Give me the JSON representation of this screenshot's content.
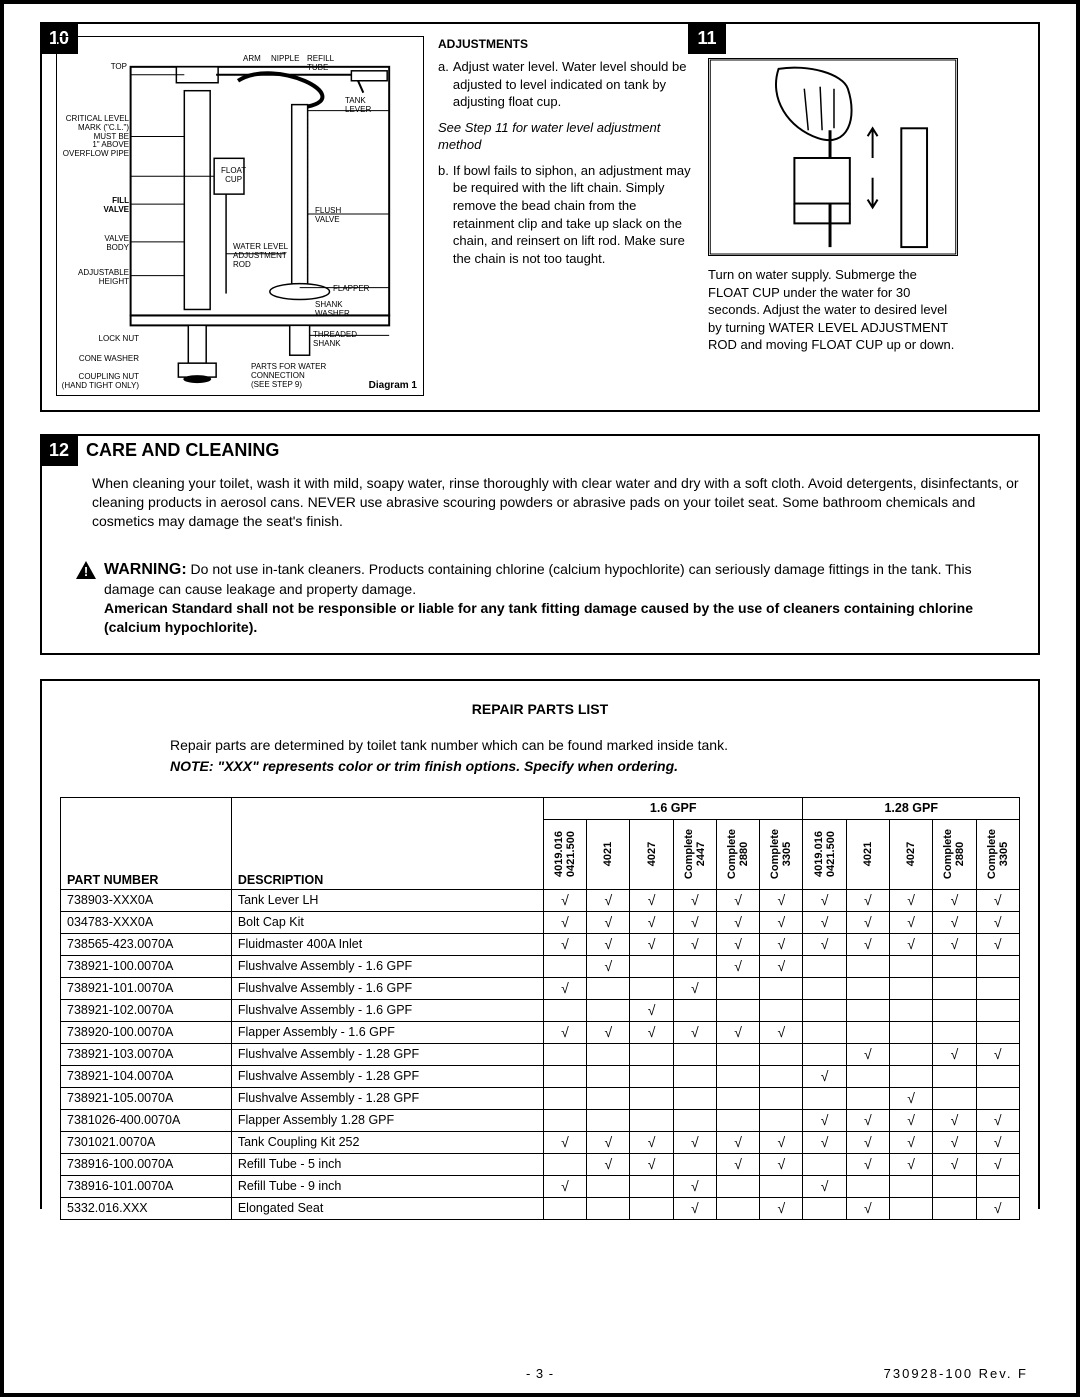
{
  "steps": {
    "s10": "10",
    "s11": "11",
    "s12": "12"
  },
  "diagram1": {
    "caption": "Diagram 1",
    "labels": {
      "top": "TOP",
      "arm": "ARM",
      "nipple": "NIPPLE",
      "refill_tube": "REFILL\nTUBE",
      "tank_lever": "TANK\nLEVER",
      "critical": "CRITICAL LEVEL\nMARK (\"C.L.\")\nMUST BE\n1\" ABOVE\nOVERFLOW PIPE",
      "float_cup": "FLOAT\nCUP",
      "fill_valve": "FILL\nVALVE",
      "flush_valve": "FLUSH\nVALVE",
      "valve_body": "VALVE\nBODY",
      "water_rod": "WATER LEVEL\nADJUSTMENT\nROD",
      "adj_height": "ADJUSTABLE\nHEIGHT",
      "flapper": "FLAPPER",
      "shank_washer": "SHANK\nWASHER",
      "lock_nut": "LOCK NUT",
      "threaded_shank": "THREADED\nSHANK",
      "cone_washer": "CONE WASHER",
      "coupling_nut": "COUPLING NUT\n(HAND TIGHT ONLY)",
      "parts_water": "PARTS FOR WATER\nCONNECTION\n(SEE STEP 9)"
    }
  },
  "adjustments": {
    "heading": "ADJUSTMENTS",
    "a": "Adjust water level. Water level should be adjusted to level indicated on tank by adjusting float cup.",
    "note": "See Step 11 for water level adjustment method",
    "b": "If bowl fails to siphon, an adjustment may be required with the lift chain. Simply remove the bead chain from the retainment clip and take up slack on the chain, and reinsert on lift rod. Make sure the chain is not too taught."
  },
  "step11_text": "Turn on water supply. Submerge the FLOAT CUP under the water for 30 seconds. Adjust the water to desired level by turning WATER LEVEL ADJUSTMENT ROD and moving FLOAT CUP up or down.",
  "care": {
    "title": "CARE AND CLEANING",
    "body": "When cleaning your toilet, wash it with mild, soapy water, rinse thoroughly with clear water and dry with a soft cloth. Avoid detergents, disinfectants, or cleaning products in aerosol cans. NEVER use abrasive scouring powders or abrasive pads on your toilet seat. Some bathroom chemicals and cosmetics may damage the seat's finish.",
    "warn_label": "WARNING:",
    "warn1": "Do not use in-tank cleaners. Products containing chlorine (calcium hypochlorite) can seriously damage fittings in the tank. This damage can cause leakage and property damage.",
    "warn2": "American Standard shall not be responsible or liable for any tank fitting damage caused by the use of cleaners containing chlorine (calcium hypochlorite)."
  },
  "parts": {
    "heading": "REPAIR PARTS LIST",
    "intro1": "Repair parts are determined by toilet tank number which can be found marked inside tank.",
    "intro2": "NOTE: \"XXX\" represents color or trim finish options. Specify when ordering.",
    "gpf16": "1.6  GPF",
    "gpf128": "1.28 GPF",
    "hdr_pn": "PART NUMBER",
    "hdr_desc": "DESCRIPTION",
    "cols16": [
      "4019.016\n0421.500",
      "4021",
      "4027",
      "Complete\n2447",
      "Complete\n2880",
      "Complete\n3305"
    ],
    "cols128": [
      "4019.016\n0421.500",
      "4021",
      "4027",
      "Complete\n2880",
      "Complete\n3305"
    ],
    "rows": [
      {
        "pn": "738903-XXX0A",
        "desc": "Tank Lever LH",
        "m": [
          1,
          1,
          1,
          1,
          1,
          1,
          1,
          1,
          1,
          1,
          1
        ]
      },
      {
        "pn": "034783-XXX0A",
        "desc": "Bolt Cap Kit",
        "m": [
          1,
          1,
          1,
          1,
          1,
          1,
          1,
          1,
          1,
          1,
          1
        ]
      },
      {
        "pn": "738565-423.0070A",
        "desc": "Fluidmaster 400A Inlet",
        "m": [
          1,
          1,
          1,
          1,
          1,
          1,
          1,
          1,
          1,
          1,
          1
        ]
      },
      {
        "pn": "738921-100.0070A",
        "desc": "Flushvalve Assembly - 1.6 GPF",
        "m": [
          0,
          1,
          0,
          0,
          1,
          1,
          0,
          0,
          0,
          0,
          0
        ]
      },
      {
        "pn": "738921-101.0070A",
        "desc": "Flushvalve Assembly - 1.6 GPF",
        "m": [
          1,
          0,
          0,
          1,
          0,
          0,
          0,
          0,
          0,
          0,
          0
        ]
      },
      {
        "pn": "738921-102.0070A",
        "desc": "Flushvalve Assembly - 1.6 GPF",
        "m": [
          0,
          0,
          1,
          0,
          0,
          0,
          0,
          0,
          0,
          0,
          0
        ]
      },
      {
        "pn": "738920-100.0070A",
        "desc": "Flapper Assembly - 1.6 GPF",
        "m": [
          1,
          1,
          1,
          1,
          1,
          1,
          0,
          0,
          0,
          0,
          0
        ]
      },
      {
        "pn": "738921-103.0070A",
        "desc": "Flushvalve Assembly - 1.28 GPF",
        "m": [
          0,
          0,
          0,
          0,
          0,
          0,
          0,
          1,
          0,
          1,
          1
        ]
      },
      {
        "pn": "738921-104.0070A",
        "desc": "Flushvalve Assembly - 1.28 GPF",
        "m": [
          0,
          0,
          0,
          0,
          0,
          0,
          1,
          0,
          0,
          0,
          0
        ]
      },
      {
        "pn": "738921-105.0070A",
        "desc": "Flushvalve Assembly - 1.28 GPF",
        "m": [
          0,
          0,
          0,
          0,
          0,
          0,
          0,
          0,
          1,
          0,
          0
        ]
      },
      {
        "pn": "7381026-400.0070A",
        "desc": "Flapper Assembly 1.28 GPF",
        "m": [
          0,
          0,
          0,
          0,
          0,
          0,
          1,
          1,
          1,
          1,
          1
        ]
      },
      {
        "pn": "7301021.0070A",
        "desc": "Tank Coupling Kit 252",
        "m": [
          1,
          1,
          1,
          1,
          1,
          1,
          1,
          1,
          1,
          1,
          1
        ]
      },
      {
        "pn": "738916-100.0070A",
        "desc": "Refill Tube - 5 inch",
        "m": [
          0,
          1,
          1,
          0,
          1,
          1,
          0,
          1,
          1,
          1,
          1
        ]
      },
      {
        "pn": "738916-101.0070A",
        "desc": "Refill Tube - 9 inch",
        "m": [
          1,
          0,
          0,
          1,
          0,
          0,
          1,
          0,
          0,
          0,
          0
        ]
      },
      {
        "pn": "5332.016.XXX",
        "desc": "Elongated Seat",
        "m": [
          0,
          0,
          0,
          1,
          0,
          1,
          0,
          1,
          0,
          0,
          1
        ]
      }
    ]
  },
  "footer": {
    "page": "- 3 -",
    "rev": "730928-100 Rev. F"
  },
  "colors": {
    "black": "#000000",
    "white": "#ffffff"
  }
}
